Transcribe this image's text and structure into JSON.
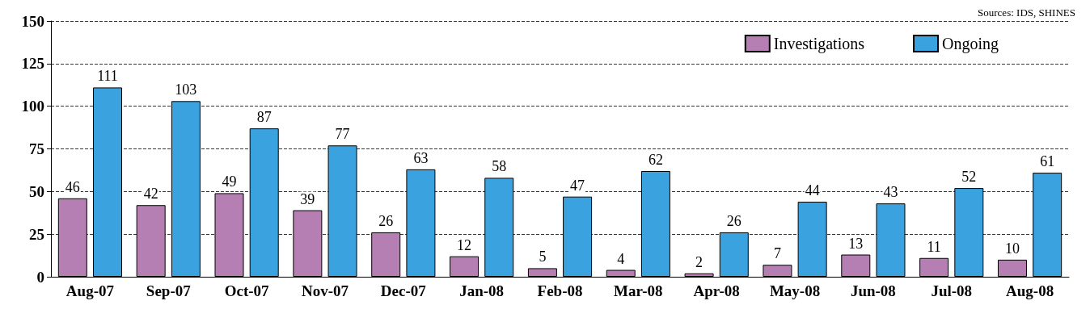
{
  "chart_data": {
    "type": "bar",
    "categories": [
      "Aug-07",
      "Sep-07",
      "Oct-07",
      "Nov-07",
      "Dec-07",
      "Jan-08",
      "Feb-08",
      "Mar-08",
      "Apr-08",
      "May-08",
      "Jun-08",
      "Jul-08",
      "Aug-08"
    ],
    "series": [
      {
        "name": "Investigations",
        "color": "#b57fb3",
        "values": [
          46,
          42,
          49,
          39,
          26,
          12,
          5,
          4,
          2,
          7,
          13,
          11,
          10
        ]
      },
      {
        "name": "Ongoing",
        "color": "#3ba2e0",
        "values": [
          111,
          103,
          87,
          77,
          63,
          58,
          47,
          62,
          26,
          44,
          43,
          52,
          61
        ]
      }
    ],
    "ylim": [
      0,
      150
    ],
    "yticks": [
      0,
      25,
      50,
      75,
      100,
      125,
      150
    ],
    "grid": "y",
    "legend": "top right",
    "data_labels": true,
    "annotations": [
      "Sources: IDS, SHINES"
    ]
  }
}
